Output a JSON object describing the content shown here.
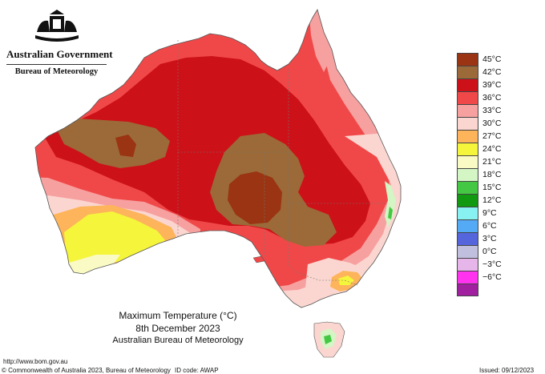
{
  "header": {
    "government": "Australian Government",
    "bureau": "Bureau of Meteorology"
  },
  "legend": [
    {
      "label": "45°C",
      "color": "#9a3412"
    },
    {
      "label": "42°C",
      "color": "#9b6a38"
    },
    {
      "label": "39°C",
      "color": "#cc1118"
    },
    {
      "label": "36°C",
      "color": "#f04848"
    },
    {
      "label": "33°C",
      "color": "#f7a0a0"
    },
    {
      "label": "30°C",
      "color": "#fbd6d0"
    },
    {
      "label": "27°C",
      "color": "#fdb45a"
    },
    {
      "label": "24°C",
      "color": "#f5f53c"
    },
    {
      "label": "21°C",
      "color": "#fafac4"
    },
    {
      "label": "18°C",
      "color": "#d4f5c4"
    },
    {
      "label": "15°C",
      "color": "#44c844"
    },
    {
      "label": "12°C",
      "color": "#119911"
    },
    {
      "label": "9°C",
      "color": "#88f2f2"
    },
    {
      "label": "6°C",
      "color": "#55aaf6"
    },
    {
      "label": "3°C",
      "color": "#5566dd"
    },
    {
      "label": "0°C",
      "color": "#c0c0de"
    },
    {
      "label": "−3°C",
      "color": "#e6b6ea"
    },
    {
      "label": "−6°C",
      "color": "#ff33ee"
    },
    {
      "label": "",
      "color": "#a020a0"
    }
  ],
  "title": {
    "line1": "Maximum Temperature (°C)",
    "line2": "8th December 2023",
    "line3": "Australian Bureau of Meteorology"
  },
  "footer": {
    "url": "http://www.bom.gov.au",
    "copyright": "© Commonwealth of Australia 2023, Bureau of Meteorology",
    "id_code": "ID code: AWAP",
    "issued": "Issued: 09/12/2023"
  }
}
